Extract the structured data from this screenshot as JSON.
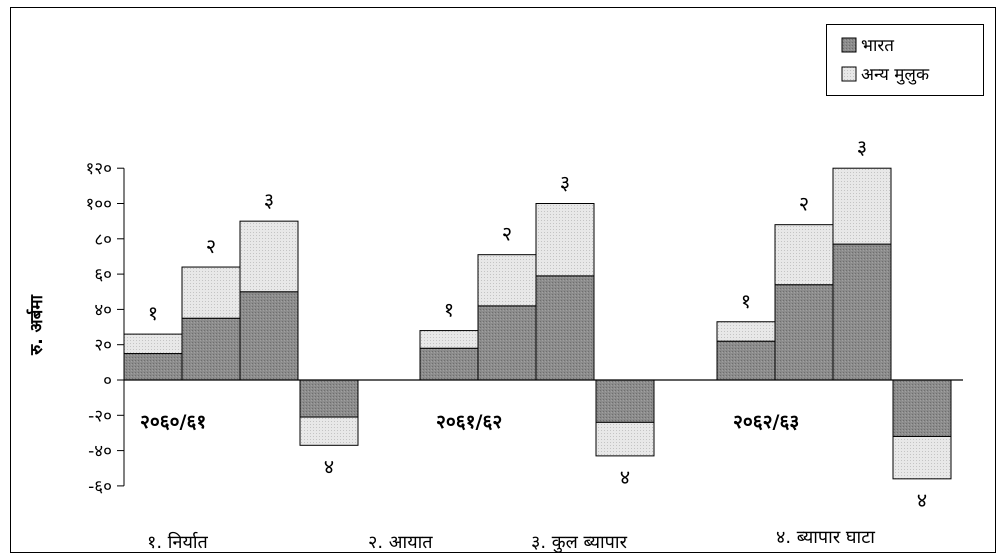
{
  "chart_data": {
    "type": "bar",
    "ylabel": "रु. अर्बमा",
    "ylim": [
      -60,
      120
    ],
    "yticks": [
      120,
      100,
      80,
      60,
      40,
      20,
      0,
      -20,
      -40,
      -60
    ],
    "ytick_labels": [
      "१२०",
      "१००",
      "८०",
      "६०",
      "४०",
      "२०",
      "०",
      "-२०",
      "-४०",
      "-६०"
    ],
    "grid": false,
    "legend_position": "top-right",
    "colors": {
      "india": "#8c8c8c",
      "other": "#e6e6e6"
    },
    "series": [
      {
        "name": "भारत",
        "key": "india"
      },
      {
        "name": "अन्य मुलुक",
        "key": "other"
      }
    ],
    "groups": [
      {
        "label": "२०६०/६१",
        "bars": [
          {
            "label": "१",
            "india": 15,
            "other": 11
          },
          {
            "label": "२",
            "india": 35,
            "other": 29
          },
          {
            "label": "३",
            "india": 50,
            "other": 40
          },
          {
            "label": "४",
            "india": -21,
            "other": -16
          }
        ]
      },
      {
        "label": "२०६१/६२",
        "bars": [
          {
            "label": "१",
            "india": 18,
            "other": 10
          },
          {
            "label": "२",
            "india": 42,
            "other": 29
          },
          {
            "label": "३",
            "india": 59,
            "other": 41
          },
          {
            "label": "४",
            "india": -24,
            "other": -19
          }
        ]
      },
      {
        "label": "२०६२/६३",
        "bars": [
          {
            "label": "१",
            "india": 22,
            "other": 11
          },
          {
            "label": "२",
            "india": 54,
            "other": 34
          },
          {
            "label": "३",
            "india": 77,
            "other": 43
          },
          {
            "label": "४",
            "india": -32,
            "other": -24
          }
        ]
      }
    ],
    "footer_labels": [
      "१. निर्यात",
      "२. आयात",
      "३. कुल ब्यापार",
      "४. ब्यापार घाटा"
    ]
  }
}
